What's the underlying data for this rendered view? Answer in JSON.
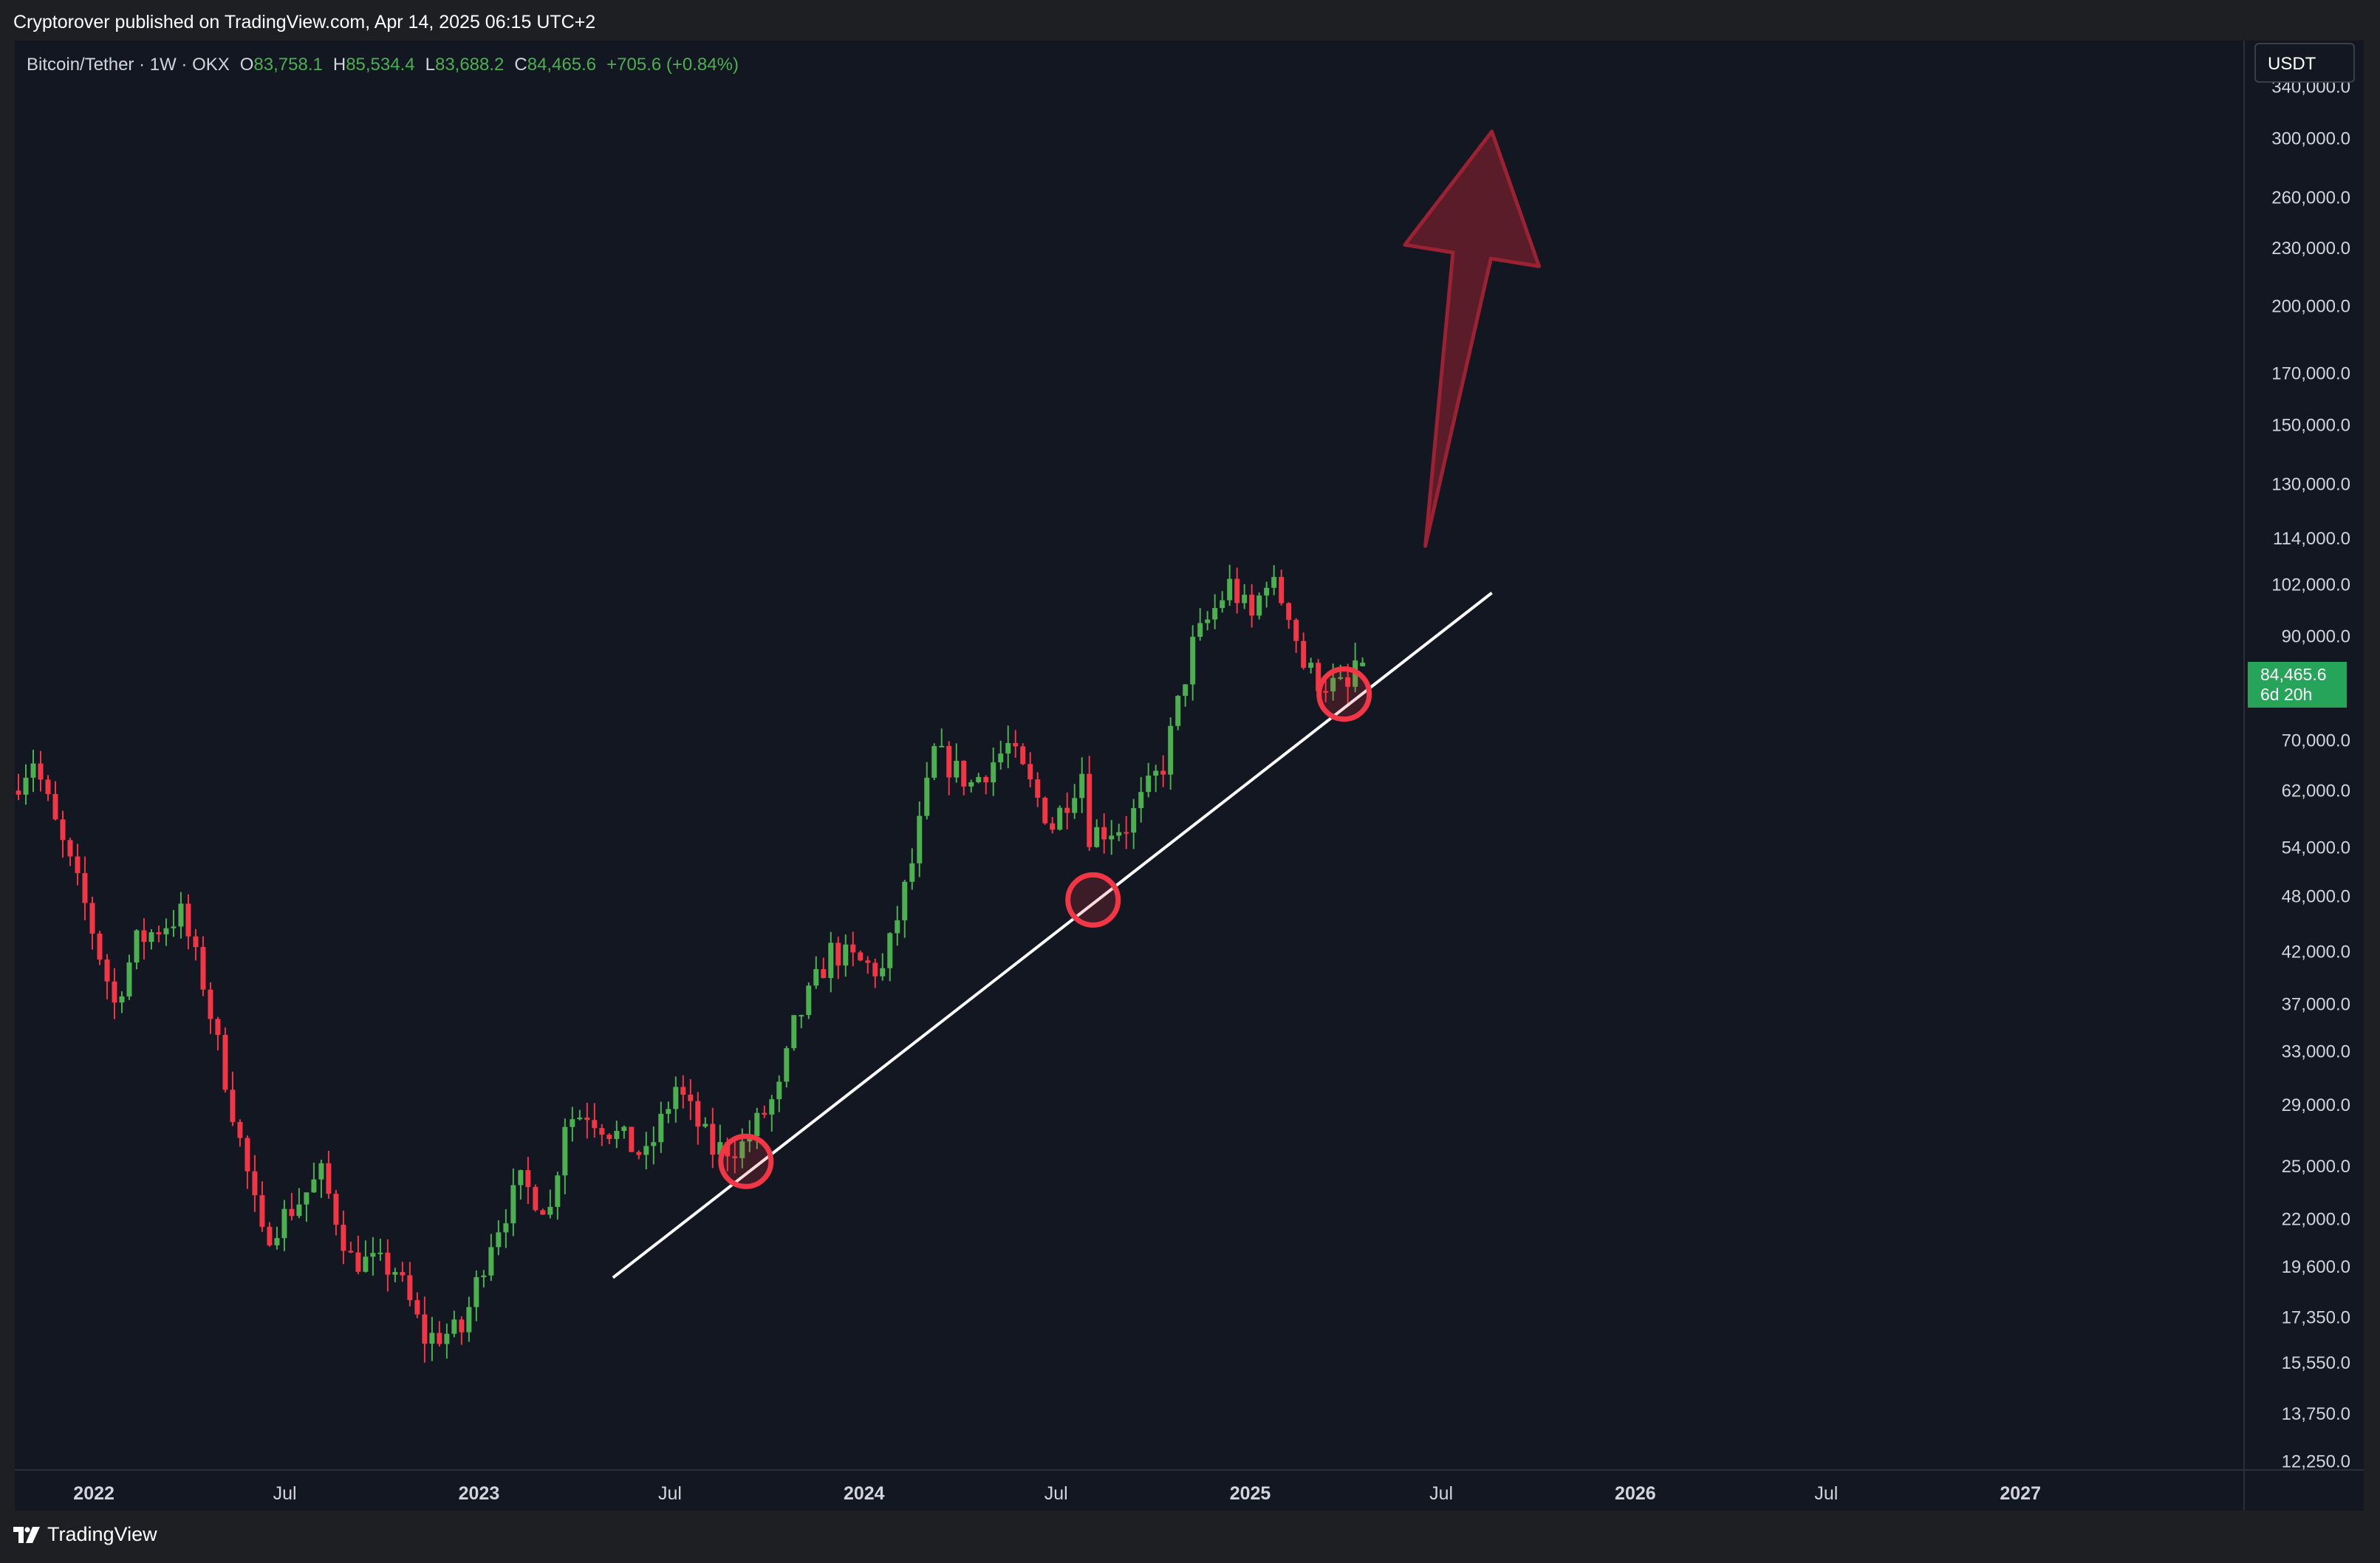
{
  "publisher": "Cryptorover published on TradingView.com, Apr 14, 2025 06:15 UTC+2",
  "legend": {
    "symbol": "Bitcoin/Tether · 1W · OKX",
    "open_label": "O",
    "open": "83,758.1",
    "high_label": "H",
    "high": "85,534.4",
    "low_label": "L",
    "low": "83,688.2",
    "close_label": "C",
    "close": "84,465.6",
    "change": "+705.6 (+0.84%)"
  },
  "currency_button": "USDT",
  "last_price": {
    "price": "84,465.6",
    "countdown": "6d 20h"
  },
  "footer": {
    "brand": "TradingView"
  },
  "colors": {
    "up": "#4caf50",
    "down": "#f23645",
    "background": "#131722",
    "trendline": "#ffffff",
    "highlight_circle": "#f23645",
    "arrow": "#8a1f2e"
  },
  "chart_data": {
    "type": "candlestick",
    "scale": "log",
    "ylim": [
      12000,
      380000
    ],
    "xlim": [
      "2021-10-18",
      "2027-08-01"
    ],
    "y_tick_labels": [
      "340,000.0",
      "300,000.0",
      "260,000.0",
      "230,000.0",
      "200,000.0",
      "170,000.0",
      "150,000.0",
      "130,000.0",
      "114,000.0",
      "102,000.0",
      "90,000.0",
      "70,000.0",
      "62,000.0",
      "54,000.0",
      "48,000.0",
      "42,000.0",
      "37,000.0",
      "33,000.0",
      "29,000.0",
      "25,000.0",
      "22,000.0",
      "19,600.0",
      "17,350.0",
      "15,550.0",
      "13,750.0",
      "12,250.0"
    ],
    "x_tick_labels": [
      {
        "date": "2022-01-01",
        "label": "2022"
      },
      {
        "date": "2022-07-01",
        "label": "Jul"
      },
      {
        "date": "2023-01-01",
        "label": "2023"
      },
      {
        "date": "2023-07-01",
        "label": "Jul"
      },
      {
        "date": "2024-01-01",
        "label": "2024"
      },
      {
        "date": "2024-07-01",
        "label": "Jul"
      },
      {
        "date": "2025-01-01",
        "label": "2025"
      },
      {
        "date": "2025-07-01",
        "label": "Jul"
      },
      {
        "date": "2026-01-01",
        "label": "2026"
      },
      {
        "date": "2026-07-01",
        "label": "Jul"
      },
      {
        "date": "2027-01-01",
        "label": "2027"
      }
    ],
    "price_path": [
      [
        "2021-10-18",
        62000
      ],
      [
        "2021-11-08",
        67000
      ],
      [
        "2021-11-29",
        57000
      ],
      [
        "2021-12-27",
        47000
      ],
      [
        "2022-01-24",
        37000
      ],
      [
        "2022-02-14",
        43000
      ],
      [
        "2022-03-28",
        46000
      ],
      [
        "2022-04-18",
        39000
      ],
      [
        "2022-05-09",
        31000
      ],
      [
        "2022-06-13",
        21000
      ],
      [
        "2022-07-18",
        23000
      ],
      [
        "2022-08-08",
        24500
      ],
      [
        "2022-09-05",
        20000
      ],
      [
        "2022-10-17",
        19500
      ],
      [
        "2022-11-14",
        16500
      ],
      [
        "2022-12-19",
        16800
      ],
      [
        "2023-01-16",
        21000
      ],
      [
        "2023-02-13",
        24000
      ],
      [
        "2023-03-13",
        22500
      ],
      [
        "2023-03-27",
        28000
      ],
      [
        "2023-04-17",
        28500
      ],
      [
        "2023-06-12",
        25500
      ],
      [
        "2023-07-10",
        30300
      ],
      [
        "2023-08-14",
        26000
      ],
      [
        "2023-09-11",
        26300
      ],
      [
        "2023-10-16",
        30000
      ],
      [
        "2023-10-30",
        35000
      ],
      [
        "2023-12-04",
        42000
      ],
      [
        "2024-01-22",
        40000
      ],
      [
        "2024-02-19",
        52000
      ],
      [
        "2024-03-11",
        68000
      ],
      [
        "2024-04-15",
        63000
      ],
      [
        "2024-05-20",
        69000
      ],
      [
        "2024-07-01",
        57000
      ],
      [
        "2024-07-29",
        65000
      ],
      [
        "2024-08-05",
        56000
      ],
      [
        "2024-09-09",
        57000
      ],
      [
        "2024-10-14",
        66000
      ],
      [
        "2024-11-11",
        88000
      ],
      [
        "2024-12-16",
        102000
      ],
      [
        "2025-01-06",
        94000
      ],
      [
        "2025-01-20",
        104000
      ],
      [
        "2025-02-10",
        96000
      ],
      [
        "2025-02-24",
        84000
      ],
      [
        "2025-03-10",
        81000
      ],
      [
        "2025-04-07",
        79000
      ],
      [
        "2025-04-14",
        84465.6
      ]
    ],
    "trendline": {
      "start": [
        "2023-05-08",
        19100
      ],
      "end": [
        "2025-08-18",
        100000
      ]
    },
    "highlight_circles": [
      {
        "date": "2023-09-11",
        "price": 25300
      },
      {
        "date": "2024-08-05",
        "price": 47600
      },
      {
        "date": "2025-03-31",
        "price": 78300
      }
    ],
    "projection_arrow": {
      "start": [
        "2025-06-16",
        112000
      ],
      "tip": [
        "2025-08-18",
        305000
      ]
    },
    "last_price": 84465.6
  }
}
